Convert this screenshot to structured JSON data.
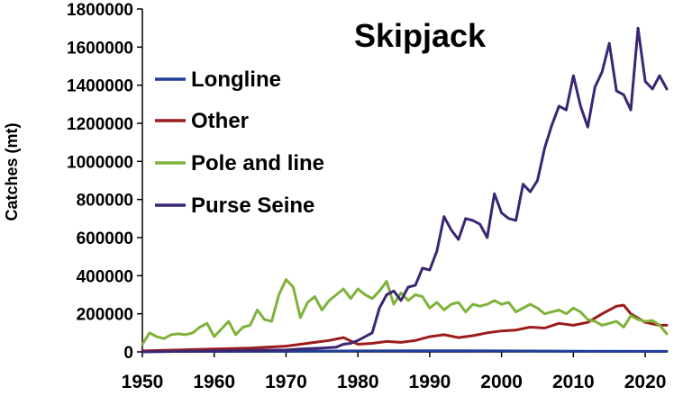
{
  "chart_data": {
    "type": "line",
    "title": "Skipjack",
    "xlabel": "",
    "ylabel": "Catches (mt)",
    "xlim": [
      1950,
      2023
    ],
    "ylim": [
      0,
      1800000
    ],
    "xticks": [
      1950,
      1960,
      1970,
      1980,
      1990,
      2000,
      2010,
      2020
    ],
    "yticks": [
      0,
      200000,
      400000,
      600000,
      800000,
      1000000,
      1200000,
      1400000,
      1600000,
      1800000
    ],
    "grid": false,
    "legend_position": "left",
    "colors": {
      "Longline": "#1f3d99",
      "Other": "#9c1c1c",
      "Pole and line": "#7fb23a",
      "Purse Seine": "#3b2673"
    },
    "series": [
      {
        "name": "Longline",
        "x": [
          1950,
          1960,
          1970,
          1980,
          1990,
          2000,
          2010,
          2020,
          2023
        ],
        "y": [
          2000,
          3000,
          4000,
          5000,
          6000,
          5000,
          4000,
          3000,
          3000
        ]
      },
      {
        "name": "Other",
        "x": [
          1950,
          1955,
          1960,
          1965,
          1970,
          1972,
          1974,
          1976,
          1978,
          1980,
          1982,
          1984,
          1986,
          1988,
          1990,
          1992,
          1994,
          1996,
          1998,
          2000,
          2002,
          2004,
          2006,
          2008,
          2010,
          2012,
          2014,
          2016,
          2017,
          2018,
          2020,
          2022,
          2023
        ],
        "y": [
          5000,
          10000,
          15000,
          20000,
          30000,
          40000,
          50000,
          60000,
          75000,
          40000,
          45000,
          55000,
          50000,
          60000,
          80000,
          90000,
          75000,
          85000,
          100000,
          110000,
          115000,
          130000,
          125000,
          150000,
          140000,
          155000,
          200000,
          240000,
          245000,
          200000,
          155000,
          140000,
          140000
        ]
      },
      {
        "name": "Pole and line",
        "x": [
          1950,
          1951,
          1952,
          1953,
          1954,
          1955,
          1956,
          1957,
          1958,
          1959,
          1960,
          1961,
          1962,
          1963,
          1964,
          1965,
          1966,
          1967,
          1968,
          1969,
          1970,
          1971,
          1972,
          1973,
          1974,
          1975,
          1976,
          1977,
          1978,
          1979,
          1980,
          1981,
          1982,
          1983,
          1984,
          1985,
          1986,
          1987,
          1988,
          1989,
          1990,
          1991,
          1992,
          1993,
          1994,
          1995,
          1996,
          1997,
          1998,
          1999,
          2000,
          2001,
          2002,
          2003,
          2004,
          2005,
          2006,
          2007,
          2008,
          2009,
          2010,
          2011,
          2012,
          2013,
          2014,
          2015,
          2016,
          2017,
          2018,
          2019,
          2020,
          2021,
          2022,
          2023
        ],
        "y": [
          40000,
          100000,
          80000,
          70000,
          90000,
          95000,
          90000,
          100000,
          130000,
          150000,
          80000,
          120000,
          160000,
          90000,
          130000,
          140000,
          220000,
          170000,
          160000,
          300000,
          380000,
          340000,
          180000,
          260000,
          290000,
          220000,
          270000,
          300000,
          330000,
          280000,
          330000,
          300000,
          280000,
          320000,
          370000,
          250000,
          310000,
          270000,
          300000,
          290000,
          230000,
          260000,
          220000,
          250000,
          260000,
          210000,
          250000,
          240000,
          250000,
          270000,
          250000,
          260000,
          210000,
          230000,
          250000,
          230000,
          200000,
          210000,
          220000,
          200000,
          230000,
          210000,
          170000,
          160000,
          140000,
          150000,
          160000,
          130000,
          190000,
          170000,
          160000,
          165000,
          140000,
          95000
        ]
      },
      {
        "name": "Purse Seine",
        "x": [
          1950,
          1960,
          1965,
          1970,
          1972,
          1975,
          1977,
          1978,
          1979,
          1980,
          1981,
          1982,
          1983,
          1984,
          1985,
          1986,
          1987,
          1988,
          1989,
          1990,
          1991,
          1992,
          1993,
          1994,
          1995,
          1996,
          1997,
          1998,
          1999,
          2000,
          2001,
          2002,
          2003,
          2004,
          2005,
          2006,
          2007,
          2008,
          2009,
          2010,
          2011,
          2012,
          2013,
          2014,
          2015,
          2016,
          2017,
          2018,
          2019,
          2020,
          2021,
          2022,
          2023
        ],
        "y": [
          0,
          5000,
          8000,
          10000,
          15000,
          20000,
          25000,
          40000,
          45000,
          60000,
          80000,
          100000,
          230000,
          300000,
          320000,
          270000,
          340000,
          350000,
          440000,
          430000,
          530000,
          710000,
          640000,
          590000,
          700000,
          690000,
          670000,
          600000,
          830000,
          730000,
          700000,
          690000,
          880000,
          840000,
          900000,
          1070000,
          1190000,
          1290000,
          1270000,
          1450000,
          1290000,
          1180000,
          1390000,
          1470000,
          1620000,
          1370000,
          1350000,
          1270000,
          1700000,
          1420000,
          1380000,
          1450000,
          1380000
        ]
      }
    ]
  }
}
